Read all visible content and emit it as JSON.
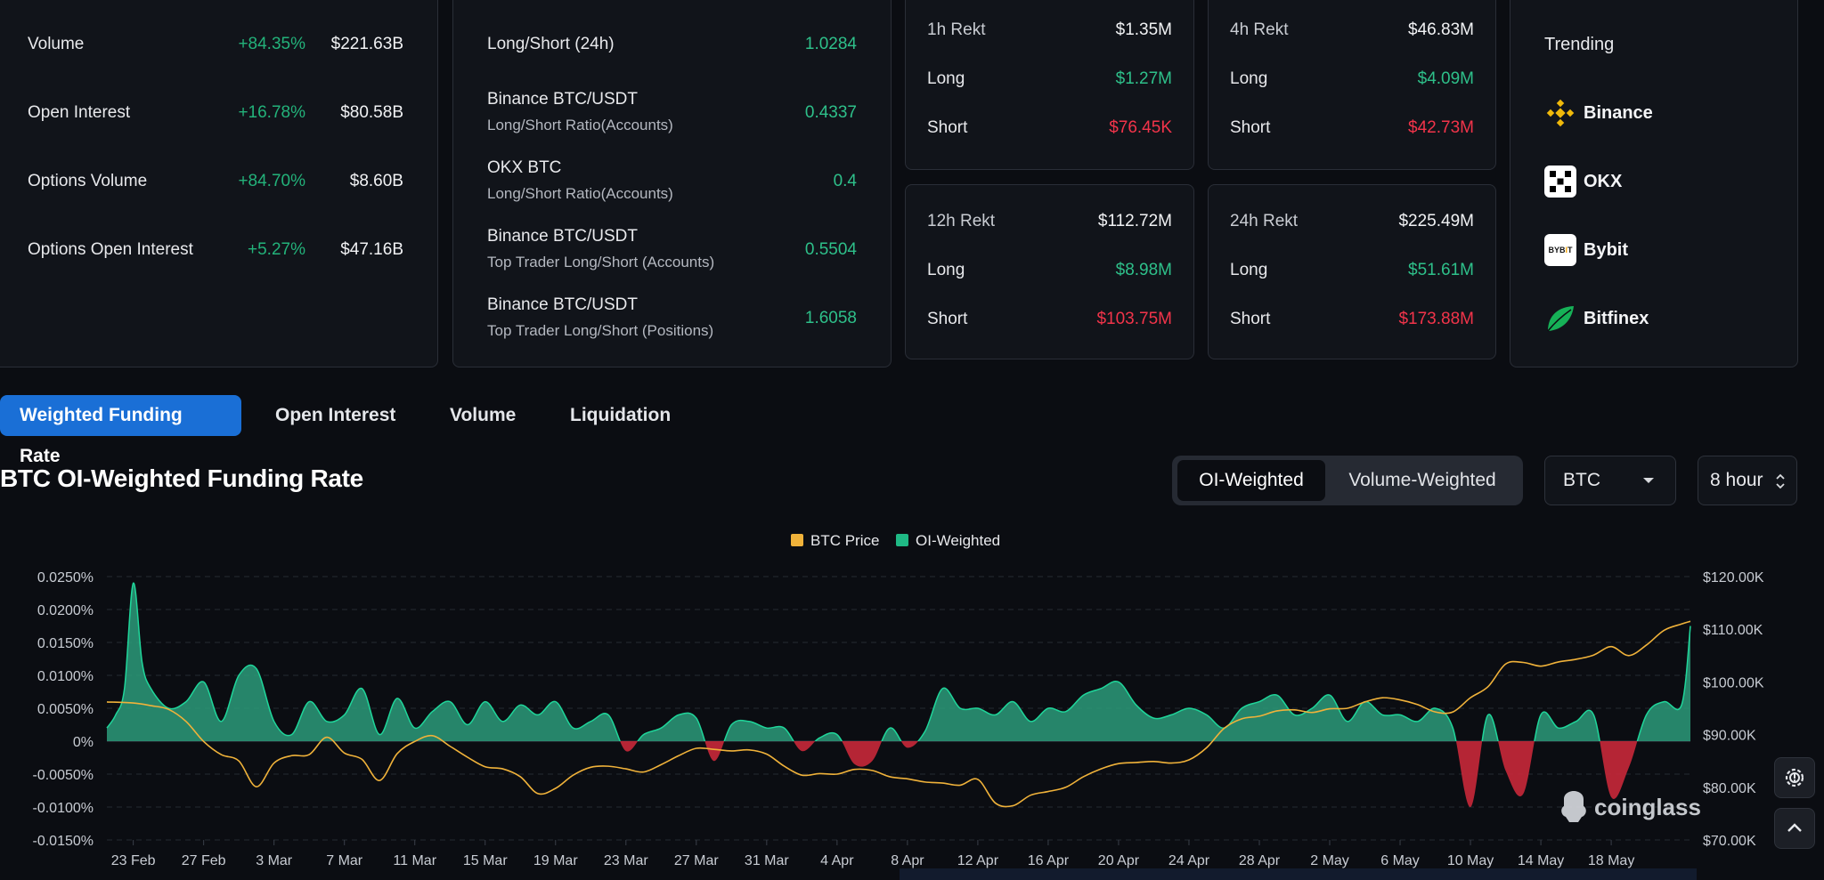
{
  "market_stats": [
    {
      "label": "Volume",
      "change": "+84.35%",
      "value": "$221.63B"
    },
    {
      "label": "Open Interest",
      "change": "+16.78%",
      "value": "$80.58B"
    },
    {
      "label": "Options Volume",
      "change": "+84.70%",
      "value": "$8.60B"
    },
    {
      "label": "Options Open Interest",
      "change": "+5.27%",
      "value": "$47.16B"
    }
  ],
  "ratios": [
    {
      "title": "Long/Short (24h)",
      "subtitle": "",
      "value": "1.0284"
    },
    {
      "title": "Binance BTC/USDT",
      "subtitle": "Long/Short Ratio(Accounts)",
      "value": "0.4337"
    },
    {
      "title": "OKX BTC",
      "subtitle": "Long/Short Ratio(Accounts)",
      "value": "0.4"
    },
    {
      "title": "Binance BTC/USDT",
      "subtitle": "Top Trader Long/Short (Accounts)",
      "value": "0.5504"
    },
    {
      "title": "Binance BTC/USDT",
      "subtitle": "Top Trader Long/Short (Positions)",
      "value": "1.6058"
    }
  ],
  "rekt": [
    {
      "title": "1h Rekt",
      "total": "$1.35M",
      "long_label": "Long",
      "long": "$1.27M",
      "short_label": "Short",
      "short": "$76.45K"
    },
    {
      "title": "4h Rekt",
      "total": "$46.83M",
      "long_label": "Long",
      "long": "$4.09M",
      "short_label": "Short",
      "short": "$42.73M"
    },
    {
      "title": "12h Rekt",
      "total": "$112.72M",
      "long_label": "Long",
      "long": "$8.98M",
      "short_label": "Short",
      "short": "$103.75M"
    },
    {
      "title": "24h Rekt",
      "total": "$225.49M",
      "long_label": "Long",
      "long": "$51.61M",
      "short_label": "Short",
      "short": "$173.88M"
    }
  ],
  "trending": {
    "title": "Trending",
    "items": [
      {
        "name": "Binance",
        "icon": "binance-logo-icon",
        "color": "#f0b90b"
      },
      {
        "name": "OKX",
        "icon": "okx-logo-icon",
        "color": "#ffffff"
      },
      {
        "name": "Bybit",
        "icon": "bybit-logo-icon",
        "color": "#ffffff"
      },
      {
        "name": "Bitfinex",
        "icon": "bitfinex-logo-icon",
        "color": "#16b157"
      }
    ]
  },
  "tabs": [
    "Weighted Funding Rate",
    "Open Interest",
    "Volume",
    "Liquidation"
  ],
  "active_tab": "Weighted Funding Rate",
  "section_title": "BTC OI-Weighted Funding Rate",
  "weighting": {
    "options": [
      "OI-Weighted",
      "Volume-Weighted"
    ],
    "selected": "OI-Weighted"
  },
  "coin_select": "BTC",
  "interval_select": "8 hour",
  "watermark": "coinglass",
  "colors": {
    "accent": "#1a6fd6",
    "positive": "#2ec08a",
    "negative": "#f2344a",
    "price_line": "#f0b23a",
    "funding_fill": "#2b9b7a"
  },
  "chart_data": {
    "type": "area",
    "legend": [
      {
        "name": "BTC Price",
        "color": "#f0b23a"
      },
      {
        "name": "OI-Weighted",
        "color": "#1fb985"
      }
    ],
    "legend_position": "top-center",
    "x_ticks": [
      "23 Feb",
      "27 Feb",
      "3 Mar",
      "7 Mar",
      "11 Mar",
      "15 Mar",
      "19 Mar",
      "23 Mar",
      "27 Mar",
      "31 Mar",
      "4 Apr",
      "8 Apr",
      "12 Apr",
      "16 Apr",
      "20 Apr",
      "24 Apr",
      "28 Apr",
      "2 May",
      "6 May",
      "10 May",
      "14 May",
      "18 May"
    ],
    "y_left_ticks": [
      "0.0250%",
      "0.0200%",
      "0.0150%",
      "0.0100%",
      "0.0050%",
      "0%",
      "-0.0050%",
      "-0.0100%",
      "-0.0150%"
    ],
    "y_right_ticks": [
      "$120.00K",
      "$110.00K",
      "$100.00K",
      "$90.00K",
      "$80.00K",
      "$70.00K"
    ],
    "y_left_range": [
      -0.015,
      0.025
    ],
    "y_right_range": [
      70000,
      120000
    ],
    "x_day_range": [
      -1.5,
      88.5
    ],
    "grid": true,
    "series": [
      {
        "name": "BTC Price",
        "axis": "right",
        "points": [
          [
            -1.5,
            96200
          ],
          [
            0,
            96000
          ],
          [
            1,
            95500
          ],
          [
            2,
            94800
          ],
          [
            3,
            92500
          ],
          [
            4,
            88700
          ],
          [
            5,
            86200
          ],
          [
            6,
            85000
          ],
          [
            7,
            80100
          ],
          [
            8,
            84600
          ],
          [
            9,
            86000
          ],
          [
            10,
            86200
          ],
          [
            11,
            89500
          ],
          [
            12,
            86500
          ],
          [
            13,
            85300
          ],
          [
            14,
            81300
          ],
          [
            15,
            86400
          ],
          [
            16,
            88700
          ],
          [
            17,
            89800
          ],
          [
            18,
            87800
          ],
          [
            19,
            85700
          ],
          [
            20,
            83900
          ],
          [
            21,
            83500
          ],
          [
            22,
            82000
          ],
          [
            23,
            78800
          ],
          [
            24,
            79800
          ],
          [
            25,
            82300
          ],
          [
            26,
            83800
          ],
          [
            27,
            84000
          ],
          [
            28,
            83500
          ],
          [
            29,
            82900
          ],
          [
            30,
            84300
          ],
          [
            31,
            86000
          ],
          [
            32,
            87400
          ],
          [
            33,
            87200
          ],
          [
            34,
            86900
          ],
          [
            35,
            87100
          ],
          [
            36,
            86300
          ],
          [
            37,
            84000
          ],
          [
            38,
            82300
          ],
          [
            39,
            82600
          ],
          [
            40,
            82500
          ],
          [
            41,
            83400
          ],
          [
            42,
            83200
          ],
          [
            43,
            82000
          ],
          [
            44,
            81600
          ],
          [
            45,
            81000
          ],
          [
            46,
            80800
          ],
          [
            47,
            80400
          ],
          [
            48,
            81500
          ],
          [
            49,
            77000
          ],
          [
            50,
            76500
          ],
          [
            51,
            78500
          ],
          [
            52,
            79200
          ],
          [
            53,
            80000
          ],
          [
            54,
            82000
          ],
          [
            55,
            83500
          ],
          [
            56,
            84500
          ],
          [
            57,
            84700
          ],
          [
            58,
            84900
          ],
          [
            59,
            84600
          ],
          [
            60,
            85200
          ],
          [
            61,
            87500
          ],
          [
            62,
            91200
          ],
          [
            63,
            93000
          ],
          [
            64,
            93500
          ],
          [
            65,
            94500
          ],
          [
            66,
            94700
          ],
          [
            67,
            94200
          ],
          [
            68,
            94900
          ],
          [
            69,
            95000
          ],
          [
            70,
            96200
          ],
          [
            71,
            97000
          ],
          [
            72,
            96600
          ],
          [
            73,
            95700
          ],
          [
            74,
            94300
          ],
          [
            75,
            94300
          ],
          [
            76,
            97000
          ],
          [
            77,
            99100
          ],
          [
            78,
            103400
          ],
          [
            79,
            103700
          ],
          [
            80,
            103000
          ],
          [
            81,
            103800
          ],
          [
            82,
            104300
          ],
          [
            83,
            105100
          ],
          [
            84,
            106700
          ],
          [
            85,
            105000
          ],
          [
            86,
            107000
          ],
          [
            87,
            109800
          ],
          [
            88,
            111000
          ],
          [
            88.5,
            111500
          ]
        ]
      },
      {
        "name": "OI-Weighted",
        "axis": "left",
        "points": [
          [
            -1.5,
            0.002
          ],
          [
            -1,
            0.004
          ],
          [
            -0.5,
            0.008
          ],
          [
            0,
            0.024
          ],
          [
            0.5,
            0.012
          ],
          [
            1,
            0.008
          ],
          [
            2,
            0.005
          ],
          [
            3,
            0.006
          ],
          [
            4,
            0.009
          ],
          [
            5,
            0.003
          ],
          [
            6,
            0.01
          ],
          [
            7,
            0.011
          ],
          [
            8,
            0.003
          ],
          [
            9,
            0.001
          ],
          [
            10,
            0.006
          ],
          [
            11,
            0.003
          ],
          [
            12,
            0.004
          ],
          [
            13,
            0.008
          ],
          [
            14,
            0.001
          ],
          [
            15,
            0.0065
          ],
          [
            16,
            0.002
          ],
          [
            17,
            0.0045
          ],
          [
            18,
            0.006
          ],
          [
            19,
            0.0025
          ],
          [
            20,
            0.006
          ],
          [
            21,
            0.003
          ],
          [
            22,
            0.0055
          ],
          [
            23,
            0.004
          ],
          [
            24,
            0.006
          ],
          [
            25,
            0.002
          ],
          [
            26,
            0.003
          ],
          [
            27,
            0.004
          ],
          [
            28,
            -0.0015
          ],
          [
            29,
            0.001
          ],
          [
            30,
            0.002
          ],
          [
            31,
            0.004
          ],
          [
            32,
            0.0035
          ],
          [
            33,
            -0.003
          ],
          [
            34,
            0.0025
          ],
          [
            35,
            0.003
          ],
          [
            36,
            0.002
          ],
          [
            37,
            0.002
          ],
          [
            38,
            -0.0015
          ],
          [
            39,
            0.0005
          ],
          [
            40,
            0.001
          ],
          [
            41,
            -0.0035
          ],
          [
            42,
            -0.003
          ],
          [
            43,
            0.002
          ],
          [
            44,
            -0.001
          ],
          [
            45,
            0.0015
          ],
          [
            46,
            0.008
          ],
          [
            47,
            0.005
          ],
          [
            48,
            0.005
          ],
          [
            49,
            0.004
          ],
          [
            50,
            0.006
          ],
          [
            51,
            0.003
          ],
          [
            52,
            0.005
          ],
          [
            53,
            0.0045
          ],
          [
            54,
            0.007
          ],
          [
            55,
            0.008
          ],
          [
            56,
            0.009
          ],
          [
            57,
            0.0055
          ],
          [
            58,
            0.0035
          ],
          [
            59,
            0.004
          ],
          [
            60,
            0.005
          ],
          [
            61,
            0.004
          ],
          [
            62,
            0.002
          ],
          [
            63,
            0.005
          ],
          [
            64,
            0.006
          ],
          [
            65,
            0.007
          ],
          [
            66,
            0.004
          ],
          [
            67,
            0.005
          ],
          [
            68,
            0.007
          ],
          [
            69,
            0.003
          ],
          [
            70,
            0.006
          ],
          [
            71,
            0.004
          ],
          [
            72,
            0.004
          ],
          [
            73,
            0.003
          ],
          [
            74,
            0.005
          ],
          [
            75,
            0.002
          ],
          [
            76,
            -0.01
          ],
          [
            77,
            0.004
          ],
          [
            78,
            -0.0045
          ],
          [
            79,
            -0.008
          ],
          [
            80,
            0.004
          ],
          [
            81,
            0.002
          ],
          [
            82,
            0.003
          ],
          [
            83,
            0.004
          ],
          [
            84,
            -0.0085
          ],
          [
            85,
            -0.004
          ],
          [
            86,
            0.004
          ],
          [
            87,
            0.006
          ],
          [
            88,
            0.0055
          ],
          [
            88.5,
            0.0175
          ]
        ]
      }
    ]
  }
}
